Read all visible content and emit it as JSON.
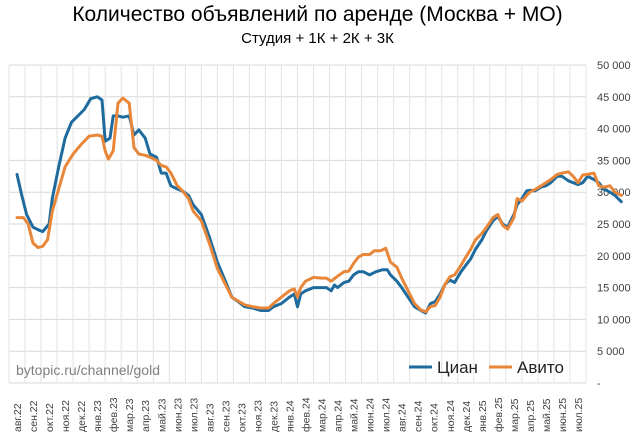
{
  "chart_data": {
    "type": "line",
    "title": "Количество объявлений по аренде (Москва + МО)",
    "subtitle": "Студия + 1К + 2К + 3К",
    "ylim": [
      0,
      50000
    ],
    "ytick_labels": [
      "-",
      "5 000",
      "10 000",
      "15 000",
      "20 000",
      "25 000",
      "30 000",
      "35 000",
      "40 000",
      "45 000",
      "50 000"
    ],
    "yticks": [
      0,
      5000,
      10000,
      15000,
      20000,
      25000,
      30000,
      35000,
      40000,
      45000,
      50000
    ],
    "x_categories": [
      "авг.22",
      "сен.22",
      "окт.22",
      "ноя.22",
      "дек.22",
      "янв.23",
      "фев.23",
      "мар.23",
      "апр.23",
      "май.23",
      "июн.23",
      "июл.23",
      "авг.23",
      "сен.23",
      "окт.23",
      "ноя.23",
      "дек.23",
      "янв.24",
      "фев.24",
      "мар.24",
      "апр.24",
      "май.24",
      "июн.24",
      "июл.24",
      "авг.24",
      "сен.24",
      "окт.24",
      "ноя.24",
      "дек.24",
      "янв.25",
      "фев.25",
      "мар.25",
      "апр.25",
      "май.25",
      "июн.25",
      "июл.25"
    ],
    "watermark": "bytopic.ru/channel/gold",
    "series": [
      {
        "name": "Циан",
        "color": "#1f6b9e",
        "points": [
          [
            0,
            32800
          ],
          [
            0.3,
            29500
          ],
          [
            0.6,
            26500
          ],
          [
            1,
            24500
          ],
          [
            1.4,
            24000
          ],
          [
            1.6,
            23800
          ],
          [
            2,
            25000
          ],
          [
            2.2,
            29000
          ],
          [
            2.6,
            34000
          ],
          [
            3,
            38500
          ],
          [
            3.4,
            41000
          ],
          [
            3.8,
            42000
          ],
          [
            4.2,
            43000
          ],
          [
            4.6,
            44700
          ],
          [
            5,
            45000
          ],
          [
            5.3,
            44500
          ],
          [
            5.5,
            38000
          ],
          [
            5.8,
            38500
          ],
          [
            6,
            42000
          ],
          [
            6.3,
            42000
          ],
          [
            6.6,
            41800
          ],
          [
            7,
            42000
          ],
          [
            7.3,
            39000
          ],
          [
            7.6,
            39800
          ],
          [
            8,
            38500
          ],
          [
            8.3,
            36000
          ],
          [
            8.7,
            35500
          ],
          [
            9,
            33000
          ],
          [
            9.3,
            33000
          ],
          [
            9.6,
            31000
          ],
          [
            10,
            30500
          ],
          [
            10.3,
            30200
          ],
          [
            10.7,
            29500
          ],
          [
            11,
            28000
          ],
          [
            11.5,
            26500
          ],
          [
            12,
            23000
          ],
          [
            12.5,
            19000
          ],
          [
            13,
            16000
          ],
          [
            13.4,
            13500
          ],
          [
            13.8,
            12800
          ],
          [
            14.2,
            12000
          ],
          [
            14.7,
            11800
          ],
          [
            15.2,
            11400
          ],
          [
            15.7,
            11400
          ],
          [
            16,
            12000
          ],
          [
            16.5,
            12500
          ],
          [
            17,
            13500
          ],
          [
            17.3,
            14000
          ],
          [
            17.5,
            12000
          ],
          [
            17.7,
            14000
          ],
          [
            18,
            14500
          ],
          [
            18.5,
            15000
          ],
          [
            19,
            15000
          ],
          [
            19.3,
            15000
          ],
          [
            19.6,
            14500
          ],
          [
            19.8,
            15400
          ],
          [
            20,
            15000
          ],
          [
            20.4,
            15800
          ],
          [
            20.7,
            16000
          ],
          [
            21,
            17000
          ],
          [
            21.3,
            17500
          ],
          [
            21.6,
            17500
          ],
          [
            22,
            17000
          ],
          [
            22.4,
            17500
          ],
          [
            22.8,
            17800
          ],
          [
            23.1,
            17800
          ],
          [
            23.3,
            17000
          ],
          [
            23.7,
            16000
          ],
          [
            24,
            15000
          ],
          [
            24.4,
            13500
          ],
          [
            24.8,
            12000
          ],
          [
            25.2,
            11400
          ],
          [
            25.5,
            11000
          ],
          [
            25.8,
            12500
          ],
          [
            26.1,
            12800
          ],
          [
            26.4,
            14000
          ],
          [
            26.7,
            15500
          ],
          [
            27,
            16200
          ],
          [
            27.3,
            15800
          ],
          [
            27.7,
            17500
          ],
          [
            28,
            18500
          ],
          [
            28.3,
            19500
          ],
          [
            28.6,
            21000
          ],
          [
            29,
            22500
          ],
          [
            29.3,
            24000
          ],
          [
            29.7,
            25500
          ],
          [
            30,
            26200
          ],
          [
            30.3,
            25000
          ],
          [
            30.6,
            24500
          ],
          [
            31,
            26500
          ],
          [
            31.2,
            28000
          ],
          [
            31.5,
            29000
          ],
          [
            31.8,
            30200
          ],
          [
            32,
            30300
          ],
          [
            32.3,
            30200
          ],
          [
            32.7,
            30800
          ],
          [
            33,
            31000
          ],
          [
            33.3,
            31500
          ],
          [
            33.7,
            32500
          ],
          [
            34,
            32500
          ],
          [
            34.4,
            31800
          ],
          [
            34.7,
            31500
          ],
          [
            35,
            31200
          ],
          [
            35.3,
            31500
          ],
          [
            35.6,
            32500
          ],
          [
            36,
            32000
          ],
          [
            36.3,
            31500
          ],
          [
            36.6,
            30500
          ],
          [
            37,
            30000
          ],
          [
            37.3,
            29500
          ],
          [
            37.7,
            28500
          ]
        ]
      },
      {
        "name": "Авито",
        "color": "#e8873a",
        "points": [
          [
            0,
            26000
          ],
          [
            0.4,
            26000
          ],
          [
            0.7,
            25000
          ],
          [
            1,
            22000
          ],
          [
            1.3,
            21300
          ],
          [
            1.6,
            21500
          ],
          [
            1.9,
            22500
          ],
          [
            2.2,
            27000
          ],
          [
            2.6,
            30500
          ],
          [
            3,
            34000
          ],
          [
            3.5,
            36000
          ],
          [
            4,
            37500
          ],
          [
            4.5,
            38800
          ],
          [
            5,
            39000
          ],
          [
            5.3,
            38800
          ],
          [
            5.5,
            36500
          ],
          [
            5.7,
            35200
          ],
          [
            6,
            36500
          ],
          [
            6.3,
            44000
          ],
          [
            6.6,
            44800
          ],
          [
            7,
            44000
          ],
          [
            7.3,
            37000
          ],
          [
            7.6,
            36000
          ],
          [
            8,
            35800
          ],
          [
            8.3,
            35500
          ],
          [
            8.7,
            35000
          ],
          [
            9,
            34200
          ],
          [
            9.3,
            34000
          ],
          [
            9.6,
            33000
          ],
          [
            10,
            31000
          ],
          [
            10.3,
            30300
          ],
          [
            10.7,
            29000
          ],
          [
            11,
            27000
          ],
          [
            11.5,
            25500
          ],
          [
            12,
            22000
          ],
          [
            12.5,
            18000
          ],
          [
            13,
            15500
          ],
          [
            13.4,
            13500
          ],
          [
            13.8,
            12900
          ],
          [
            14.2,
            12300
          ],
          [
            14.7,
            12000
          ],
          [
            15.2,
            11800
          ],
          [
            15.7,
            11800
          ],
          [
            16,
            12500
          ],
          [
            16.5,
            13500
          ],
          [
            17,
            14500
          ],
          [
            17.3,
            14800
          ],
          [
            17.5,
            13500
          ],
          [
            17.7,
            15000
          ],
          [
            18,
            16000
          ],
          [
            18.5,
            16600
          ],
          [
            19,
            16500
          ],
          [
            19.3,
            16500
          ],
          [
            19.6,
            16000
          ],
          [
            20,
            16800
          ],
          [
            20.4,
            17500
          ],
          [
            20.7,
            17600
          ],
          [
            21,
            18800
          ],
          [
            21.3,
            19800
          ],
          [
            21.6,
            20200
          ],
          [
            22,
            20200
          ],
          [
            22.3,
            20800
          ],
          [
            22.7,
            20800
          ],
          [
            23,
            21200
          ],
          [
            23.3,
            19000
          ],
          [
            23.7,
            18200
          ],
          [
            24,
            16500
          ],
          [
            24.4,
            14500
          ],
          [
            24.8,
            12500
          ],
          [
            25.2,
            11500
          ],
          [
            25.5,
            11200
          ],
          [
            25.8,
            12000
          ],
          [
            26.1,
            12200
          ],
          [
            26.4,
            13500
          ],
          [
            26.7,
            15500
          ],
          [
            27,
            16700
          ],
          [
            27.3,
            17000
          ],
          [
            27.7,
            18500
          ],
          [
            28,
            19800
          ],
          [
            28.3,
            21000
          ],
          [
            28.6,
            22500
          ],
          [
            29,
            23500
          ],
          [
            29.3,
            24500
          ],
          [
            29.7,
            26000
          ],
          [
            30,
            26500
          ],
          [
            30.3,
            24800
          ],
          [
            30.6,
            24200
          ],
          [
            31,
            26000
          ],
          [
            31.2,
            29000
          ],
          [
            31.5,
            28600
          ],
          [
            31.8,
            29500
          ],
          [
            32,
            30000
          ],
          [
            32.3,
            30400
          ],
          [
            32.7,
            31000
          ],
          [
            33,
            31500
          ],
          [
            33.3,
            32000
          ],
          [
            33.7,
            32800
          ],
          [
            34,
            33000
          ],
          [
            34.4,
            33200
          ],
          [
            34.7,
            32500
          ],
          [
            35,
            31500
          ],
          [
            35.3,
            32700
          ],
          [
            35.6,
            32800
          ],
          [
            36,
            33000
          ],
          [
            36.3,
            31000
          ],
          [
            36.6,
            30800
          ],
          [
            37,
            31000
          ],
          [
            37.3,
            30000
          ],
          [
            37.7,
            29500
          ]
        ]
      }
    ]
  }
}
